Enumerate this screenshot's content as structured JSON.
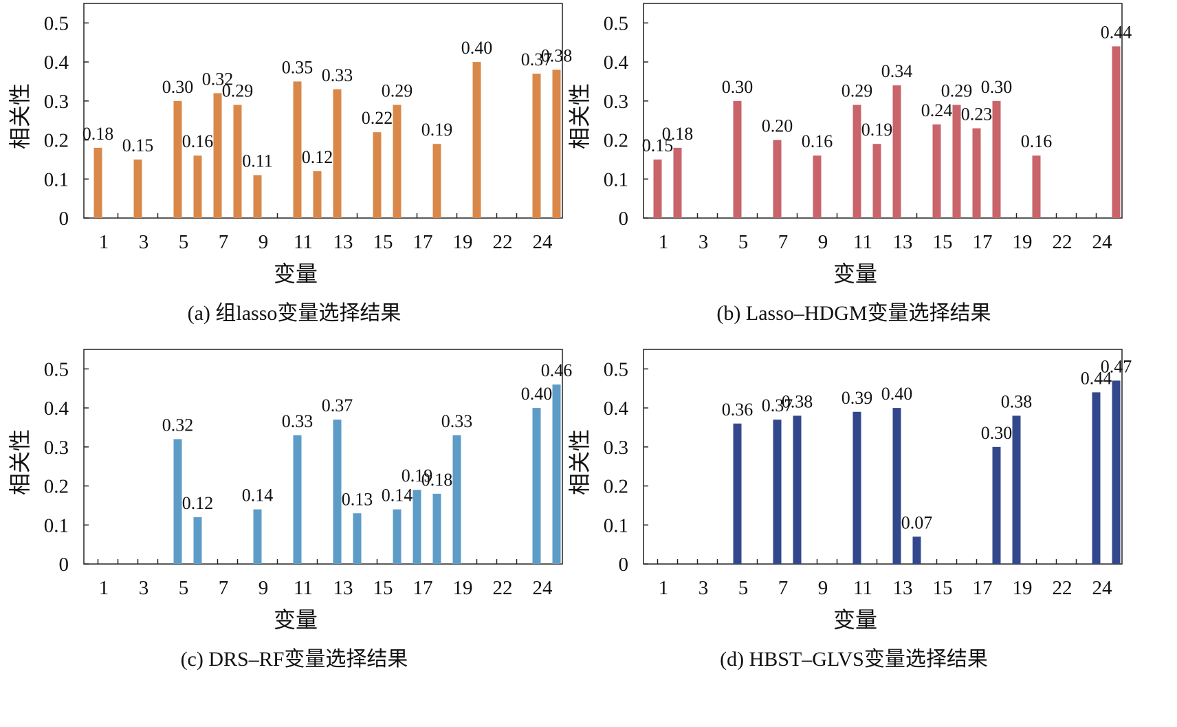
{
  "chart_data": [
    {
      "type": "bar",
      "caption": "(a) 组lasso变量选择结果",
      "xlabel": "变量",
      "ylabel": "相关性",
      "ylim": [
        0,
        0.55
      ],
      "yticks": [
        "0",
        "0.1",
        "0.2",
        "0.3",
        "0.4",
        "0.5"
      ],
      "xticks": [
        "1",
        "3",
        "5",
        "7",
        "9",
        "11",
        "13",
        "15",
        "17",
        "19",
        "22",
        "24"
      ],
      "bar_color": "#D9884A",
      "points": [
        {
          "x": 1,
          "value": 0.18,
          "label": "0.18"
        },
        {
          "x": 3,
          "value": 0.15,
          "label": "0.15"
        },
        {
          "x": 5,
          "value": 0.3,
          "label": "0.30"
        },
        {
          "x": 6,
          "value": 0.16,
          "label": "0.16"
        },
        {
          "x": 7,
          "value": 0.32,
          "label": "0.32"
        },
        {
          "x": 8,
          "value": 0.29,
          "label": "0.29"
        },
        {
          "x": 9,
          "value": 0.11,
          "label": "0.11"
        },
        {
          "x": 11,
          "value": 0.35,
          "label": "0.35"
        },
        {
          "x": 12,
          "value": 0.12,
          "label": "0.12"
        },
        {
          "x": 13,
          "value": 0.33,
          "label": "0.33"
        },
        {
          "x": 15,
          "value": 0.22,
          "label": "0.22"
        },
        {
          "x": 16,
          "value": 0.29,
          "label": "0.29"
        },
        {
          "x": 18,
          "value": 0.19,
          "label": "0.19"
        },
        {
          "x": 20,
          "value": 0.4,
          "label": "0.40"
        },
        {
          "x": 23,
          "value": 0.37,
          "label": "0.37"
        },
        {
          "x": 24,
          "value": 0.38,
          "label": "0.38"
        }
      ]
    },
    {
      "type": "bar",
      "caption": "(b) Lasso–HDGM变量选择结果",
      "xlabel": "变量",
      "ylabel": "相关性",
      "ylim": [
        0,
        0.55
      ],
      "yticks": [
        "0",
        "0.1",
        "0.2",
        "0.3",
        "0.4",
        "0.5"
      ],
      "xticks": [
        "1",
        "3",
        "5",
        "7",
        "9",
        "11",
        "13",
        "15",
        "17",
        "19",
        "22",
        "24"
      ],
      "bar_color": "#C8646A",
      "points": [
        {
          "x": 1,
          "value": 0.15,
          "label": "0.15"
        },
        {
          "x": 2,
          "value": 0.18,
          "label": "0.18"
        },
        {
          "x": 5,
          "value": 0.3,
          "label": "0.30"
        },
        {
          "x": 7,
          "value": 0.2,
          "label": "0.20"
        },
        {
          "x": 9,
          "value": 0.16,
          "label": "0.16"
        },
        {
          "x": 11,
          "value": 0.29,
          "label": "0.29"
        },
        {
          "x": 12,
          "value": 0.19,
          "label": "0.19"
        },
        {
          "x": 13,
          "value": 0.34,
          "label": "0.34"
        },
        {
          "x": 15,
          "value": 0.24,
          "label": "0.24"
        },
        {
          "x": 16,
          "value": 0.29,
          "label": "0.29"
        },
        {
          "x": 17,
          "value": 0.23,
          "label": "0.23"
        },
        {
          "x": 18,
          "value": 0.3,
          "label": "0.30"
        },
        {
          "x": 20,
          "value": 0.16,
          "label": "0.16"
        },
        {
          "x": 24,
          "value": 0.44,
          "label": "0.44"
        }
      ]
    },
    {
      "type": "bar",
      "caption": "(c) DRS–RF变量选择结果",
      "xlabel": "变量",
      "ylabel": "相关性",
      "ylim": [
        0,
        0.55
      ],
      "yticks": [
        "0",
        "0.1",
        "0.2",
        "0.3",
        "0.4",
        "0.5"
      ],
      "xticks": [
        "1",
        "3",
        "5",
        "7",
        "9",
        "11",
        "13",
        "15",
        "17",
        "19",
        "22",
        "24"
      ],
      "bar_color": "#5E9CC8",
      "points": [
        {
          "x": 5,
          "value": 0.32,
          "label": "0.32"
        },
        {
          "x": 6,
          "value": 0.12,
          "label": "0.12"
        },
        {
          "x": 9,
          "value": 0.14,
          "label": "0.14"
        },
        {
          "x": 11,
          "value": 0.33,
          "label": "0.33"
        },
        {
          "x": 13,
          "value": 0.37,
          "label": "0.37"
        },
        {
          "x": 14,
          "value": 0.13,
          "label": "0.13"
        },
        {
          "x": 16,
          "value": 0.14,
          "label": "0.14"
        },
        {
          "x": 17,
          "value": 0.19,
          "label": "0.19"
        },
        {
          "x": 18,
          "value": 0.18,
          "label": "0.18"
        },
        {
          "x": 19,
          "value": 0.33,
          "label": "0.33"
        },
        {
          "x": 23,
          "value": 0.4,
          "label": "0.40"
        },
        {
          "x": 24,
          "value": 0.46,
          "label": "0.46"
        }
      ]
    },
    {
      "type": "bar",
      "caption": "(d) HBST–GLVS变量选择结果",
      "xlabel": "变量",
      "ylabel": "相关性",
      "ylim": [
        0,
        0.55
      ],
      "yticks": [
        "0",
        "0.1",
        "0.2",
        "0.3",
        "0.4",
        "0.5"
      ],
      "xticks": [
        "1",
        "3",
        "5",
        "7",
        "9",
        "11",
        "13",
        "15",
        "17",
        "19",
        "22",
        "24"
      ],
      "bar_color": "#33488C",
      "points": [
        {
          "x": 5,
          "value": 0.36,
          "label": "0.36"
        },
        {
          "x": 7,
          "value": 0.37,
          "label": "0.37"
        },
        {
          "x": 8,
          "value": 0.38,
          "label": "0.38"
        },
        {
          "x": 11,
          "value": 0.39,
          "label": "0.39"
        },
        {
          "x": 13,
          "value": 0.4,
          "label": "0.40"
        },
        {
          "x": 14,
          "value": 0.07,
          "label": "0.07"
        },
        {
          "x": 18,
          "value": 0.3,
          "label": "0.30"
        },
        {
          "x": 19,
          "value": 0.38,
          "label": "0.38"
        },
        {
          "x": 23,
          "value": 0.44,
          "label": "0.44"
        },
        {
          "x": 24,
          "value": 0.47,
          "label": "0.47"
        }
      ]
    }
  ]
}
